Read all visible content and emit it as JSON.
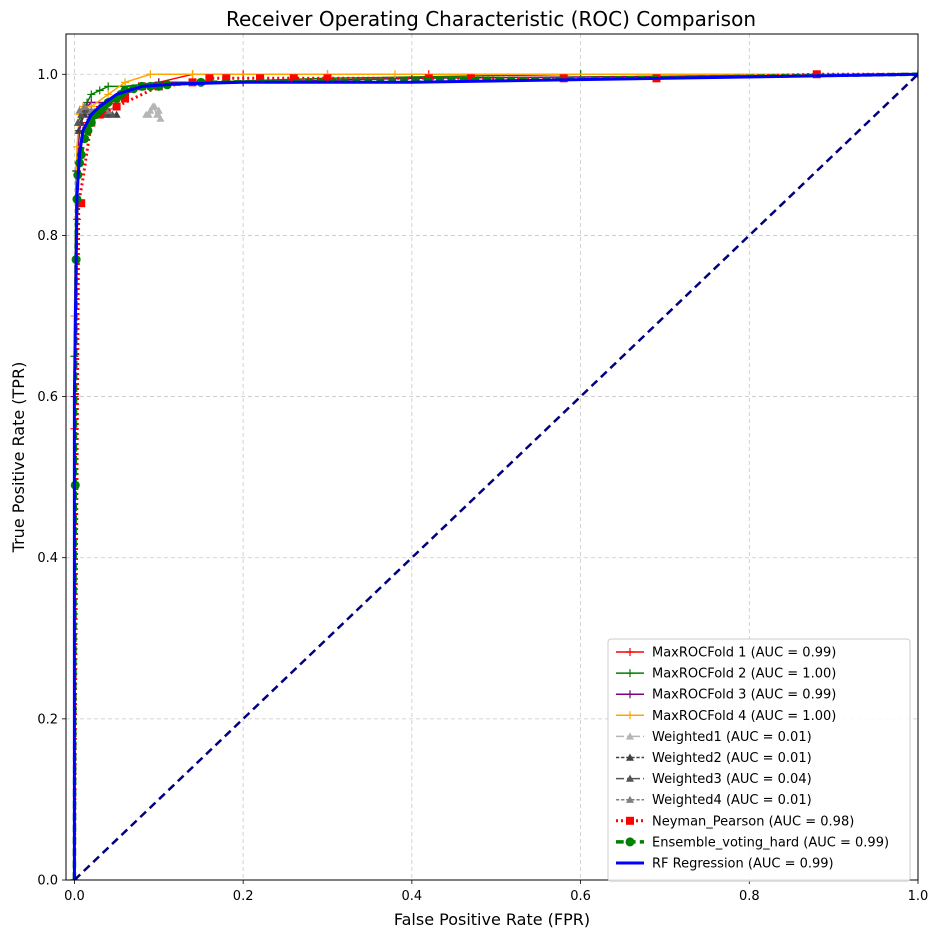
{
  "chart_data": {
    "type": "line",
    "title": "Receiver Operating Characteristic (ROC) Comparison",
    "xlabel": "False Positive Rate (FPR)",
    "ylabel": "True Positive Rate (TPR)",
    "xlim": [
      -0.01,
      1.0
    ],
    "ylim": [
      0.0,
      1.05
    ],
    "xticks": [
      0.0,
      0.2,
      0.4,
      0.6,
      0.8,
      1.0
    ],
    "yticks": [
      0.0,
      0.2,
      0.4,
      0.6,
      0.8,
      1.0
    ],
    "xtick_labels": [
      "0.0",
      "0.2",
      "0.4",
      "0.6",
      "0.8",
      "1.0"
    ],
    "ytick_labels": [
      "0.0",
      "0.2",
      "0.4",
      "0.6",
      "0.8",
      "1.0"
    ],
    "grid": true,
    "legend_position": "lower-right",
    "series": [
      {
        "name": "MaxROCFold 1 (AUC = 0.99)",
        "color": "#ff0000",
        "dash": "solid",
        "marker": "plus",
        "width": 1.5,
        "x": [
          0,
          0,
          0.003,
          0.005,
          0.01,
          0.015,
          0.02,
          0.03,
          0.05,
          0.08,
          0.1,
          0.14,
          0.2,
          0.3,
          0.42,
          0.6,
          1.0
        ],
        "y": [
          0,
          0.56,
          0.82,
          0.89,
          0.93,
          0.94,
          0.95,
          0.96,
          0.97,
          0.985,
          0.99,
          1.0,
          1.0,
          1.0,
          1.0,
          1.0,
          1.0
        ]
      },
      {
        "name": "MaxROCFold 2 (AUC = 1.00)",
        "color": "#008000",
        "dash": "solid",
        "marker": "plus",
        "width": 1.5,
        "x": [
          0,
          0,
          0.002,
          0.005,
          0.01,
          0.015,
          0.02,
          0.03,
          0.04,
          0.06,
          0.1,
          0.15,
          0.3,
          0.6,
          1.0
        ],
        "y": [
          0,
          0.65,
          0.88,
          0.93,
          0.955,
          0.965,
          0.975,
          0.98,
          0.985,
          0.985,
          0.99,
          0.99,
          0.995,
          1.0,
          1.0
        ]
      },
      {
        "name": "MaxROCFold 3 (AUC = 0.99)",
        "color": "#800080",
        "dash": "solid",
        "marker": "plus",
        "width": 1.5,
        "x": [
          0,
          0,
          0.003,
          0.006,
          0.01,
          0.015,
          0.02,
          0.04,
          0.06,
          0.08,
          0.1,
          0.2,
          0.4,
          1.0
        ],
        "y": [
          0,
          0.6,
          0.88,
          0.93,
          0.95,
          0.96,
          0.965,
          0.965,
          0.975,
          0.985,
          0.99,
          0.99,
          0.995,
          1.0
        ]
      },
      {
        "name": "MaxROCFold 4 (AUC = 1.00)",
        "color": "#ffa500",
        "dash": "solid",
        "marker": "plus",
        "width": 1.5,
        "x": [
          0,
          0,
          0.003,
          0.006,
          0.01,
          0.02,
          0.04,
          0.06,
          0.09,
          0.14,
          0.3,
          0.38,
          1.0
        ],
        "y": [
          0,
          0.7,
          0.91,
          0.95,
          0.96,
          0.96,
          0.975,
          0.99,
          1.0,
          1.0,
          1.0,
          1.0,
          1.0
        ]
      },
      {
        "name": "Weighted1 (AUC = 0.01)",
        "color": "#b5b5b5",
        "dash": "dashdot",
        "marker": "triangle",
        "width": 1.5,
        "x": [
          0.085,
          0.09,
          0.095,
          0.1,
          0.102,
          0.098,
          0.093,
          0.088
        ],
        "y": [
          0.95,
          0.955,
          0.96,
          0.955,
          0.945,
          0.95,
          0.96,
          0.95
        ]
      },
      {
        "name": "Weighted2 (AUC = 0.01)",
        "color": "#404040",
        "dash": "dashed",
        "marker": "triangle",
        "width": 1.5,
        "x": [
          0.005,
          0.008,
          0.012,
          0.02,
          0.03,
          0.04,
          0.05
        ],
        "y": [
          0.93,
          0.94,
          0.95,
          0.95,
          0.95,
          0.95,
          0.95
        ]
      },
      {
        "name": "Weighted3 (AUC = 0.04)",
        "color": "#555555",
        "dash": "dashdot",
        "marker": "triangle",
        "width": 1.5,
        "x": [
          0.004,
          0.008,
          0.015,
          0.025,
          0.035,
          0.045
        ],
        "y": [
          0.94,
          0.95,
          0.955,
          0.95,
          0.95,
          0.95
        ]
      },
      {
        "name": "Weighted4 (AUC = 0.01)",
        "color": "#808080",
        "dash": "dashed",
        "marker": "triangle",
        "width": 1.5,
        "x": [
          0.006,
          0.012,
          0.02,
          0.03,
          0.04,
          0.05
        ],
        "y": [
          0.955,
          0.96,
          0.955,
          0.96,
          0.955,
          0.96
        ]
      },
      {
        "name": "Neyman_Pearson (AUC = 0.98)",
        "color": "#ff0000",
        "dash": "dotted",
        "marker": "square",
        "width": 3,
        "x": [
          0,
          0.005,
          0.01,
          0.02,
          0.03,
          0.05,
          0.07,
          0.1,
          0.15,
          0.16,
          0.18,
          0.22,
          0.26,
          0.3,
          0.42,
          0.47,
          0.58,
          0.69,
          0.88,
          1.0
        ],
        "y": [
          0,
          0.84,
          0.87,
          0.94,
          0.95,
          0.96,
          0.97,
          0.985,
          0.99,
          0.995,
          0.995,
          0.995,
          0.995,
          0.995,
          0.995,
          0.995,
          0.995,
          0.995,
          1.0,
          1.0
        ],
        "marker_x": [
          0.008,
          0.02,
          0.03,
          0.05,
          0.06,
          0.08,
          0.1,
          0.14,
          0.16,
          0.18,
          0.22,
          0.26,
          0.3,
          0.42,
          0.47,
          0.58,
          0.69,
          0.88
        ],
        "marker_y": [
          0.84,
          0.94,
          0.95,
          0.96,
          0.97,
          0.985,
          0.985,
          0.99,
          0.995,
          0.995,
          0.995,
          0.995,
          0.995,
          0.995,
          0.995,
          0.995,
          0.995,
          1.0
        ]
      },
      {
        "name": "Ensemble_voting_hard (AUC = 0.99)",
        "color": "#008000",
        "dash": "dashed",
        "marker": "circle",
        "width": 3.5,
        "x": [
          0,
          0.001,
          0.002,
          0.003,
          0.004,
          0.006,
          0.008,
          0.012,
          0.016,
          0.02,
          0.025,
          0.03,
          0.035,
          0.04,
          0.05,
          0.055,
          0.06,
          0.07,
          0.08,
          0.09,
          0.1,
          0.11,
          0.15,
          0.3,
          0.6,
          1.0
        ],
        "y": [
          0,
          0.49,
          0.77,
          0.845,
          0.875,
          0.89,
          0.9,
          0.92,
          0.93,
          0.94,
          0.95,
          0.955,
          0.96,
          0.965,
          0.97,
          0.975,
          0.98,
          0.982,
          0.985,
          0.985,
          0.985,
          0.987,
          0.99,
          0.992,
          0.995,
          1.0
        ],
        "marker_x": [
          0.001,
          0.002,
          0.003,
          0.004,
          0.006,
          0.008,
          0.012,
          0.016,
          0.02,
          0.025,
          0.03,
          0.035,
          0.04,
          0.05,
          0.055,
          0.06,
          0.07,
          0.08,
          0.09,
          0.1,
          0.11,
          0.15
        ],
        "marker_y": [
          0.49,
          0.77,
          0.845,
          0.875,
          0.89,
          0.9,
          0.92,
          0.93,
          0.94,
          0.95,
          0.955,
          0.96,
          0.965,
          0.97,
          0.975,
          0.98,
          0.982,
          0.985,
          0.985,
          0.985,
          0.987,
          0.99
        ]
      },
      {
        "name": "RF Regression (AUC = 0.99)",
        "color": "#0000ff",
        "dash": "solid",
        "marker": "none",
        "width": 3,
        "x": [
          0,
          0,
          0.003,
          0.006,
          0.01,
          0.02,
          0.03,
          0.05,
          0.08,
          0.12,
          0.2,
          0.4,
          0.7,
          1.0
        ],
        "y": [
          0,
          0.6,
          0.85,
          0.9,
          0.93,
          0.95,
          0.96,
          0.975,
          0.985,
          0.988,
          0.99,
          0.99,
          0.995,
          1.0
        ]
      }
    ],
    "diagonal": {
      "color": "#000080",
      "x": [
        0,
        1
      ],
      "y": [
        0,
        1
      ]
    }
  }
}
